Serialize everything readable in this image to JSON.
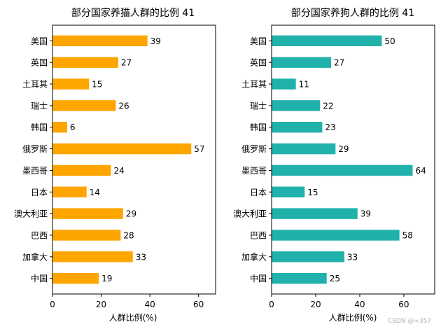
{
  "chart_data": [
    {
      "type": "bar",
      "orientation": "horizontal",
      "title": "部分国家养猫人群的比例 41",
      "xlabel": "人群比例(%)",
      "ylabel": "",
      "xlim": [
        0,
        67
      ],
      "xticks": [
        0,
        20,
        40,
        60
      ],
      "categories": [
        "美国",
        "英国",
        "土耳其",
        "瑞士",
        "韩国",
        "俄罗斯",
        "墨西哥",
        "日本",
        "澳大利亚",
        "巴西",
        "加拿大",
        "中国"
      ],
      "values": [
        39,
        27,
        15,
        26,
        6,
        57,
        24,
        14,
        29,
        28,
        33,
        19
      ],
      "color": "#FFA500",
      "grid": false,
      "data_labels": true
    },
    {
      "type": "bar",
      "orientation": "horizontal",
      "title": "部分国家养狗人群的比例 41",
      "xlabel": "人群比例(%)",
      "ylabel": "",
      "xlim": [
        0,
        74
      ],
      "xticks": [
        0,
        20,
        40,
        60
      ],
      "categories": [
        "美国",
        "英国",
        "土耳其",
        "瑞士",
        "韩国",
        "俄罗斯",
        "墨西哥",
        "日本",
        "澳大利亚",
        "巴西",
        "加拿大",
        "中国"
      ],
      "values": [
        50,
        27,
        11,
        22,
        23,
        29,
        64,
        15,
        39,
        58,
        33,
        25
      ],
      "color": "#20B2AA",
      "grid": false,
      "data_labels": true
    }
  ],
  "watermark": "CSDN @∞357"
}
